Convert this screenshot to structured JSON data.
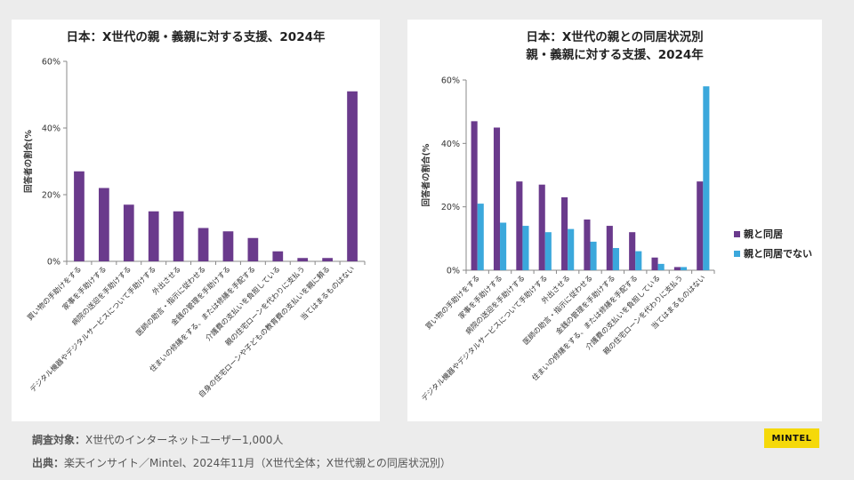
{
  "colors": {
    "purple": "#6a3a8c",
    "blue": "#3ba8dc",
    "axis": "#888888",
    "text": "#333333"
  },
  "chart_data": [
    {
      "type": "bar",
      "title": "日本：X世代の親・義親に対する支援、2024年",
      "ylabel": "回答者の割合(%",
      "ylim": [
        0,
        60
      ],
      "yticks": [
        "0%",
        "20%",
        "40%",
        "60%"
      ],
      "categories": [
        "買い物の手助けをする",
        "家事を手助けする",
        "病院の送迎を手助けする",
        "デジタル機器やデジタルサービスについて手助けする",
        "外出させる",
        "医師の助言・指示に従わせる",
        "金銭の管理を手助けする",
        "住まいの修繕をする、または修繕を手配する",
        "介護費の支払いを負担している",
        "親の住宅ローンを代わりに支払う",
        "自身の住宅ローンや子どもの教育費の支払いを親に頼る",
        "当てはまるものはない"
      ],
      "series": [
        {
          "name": "X世代全体",
          "values": [
            27,
            22,
            17,
            15,
            15,
            10,
            9,
            7,
            3,
            1,
            1,
            51
          ]
        }
      ]
    },
    {
      "type": "bar",
      "title_line1": "日本：X世代の親との同居状況別",
      "title_line2": "親・義親に対する支援、2024年",
      "ylabel": "回答者の割合(%",
      "ylim": [
        0,
        60
      ],
      "yticks": [
        "0%",
        "20%",
        "40%",
        "60%"
      ],
      "categories": [
        "買い物の手助けをする",
        "家事を手助けする",
        "病院の送迎を手助けする",
        "デジタル機器やデジタルサービスについて手助けする",
        "外出させる",
        "医師の助言・指示に従わせる",
        "金銭の管理を手助けする",
        "住まいの修繕をする、または修繕を手配する",
        "介護費の支払いを負担している",
        "親の住宅ローンを代わりに支払う",
        "当てはまるものはない"
      ],
      "series": [
        {
          "name": "親と同居",
          "values": [
            47,
            45,
            28,
            27,
            23,
            16,
            14,
            12,
            4,
            1,
            28
          ]
        },
        {
          "name": "親と同居でない",
          "values": [
            21,
            15,
            14,
            12,
            13,
            9,
            7,
            6,
            2,
            1,
            58
          ]
        }
      ],
      "legend": "right"
    }
  ],
  "footer": {
    "target_label": "調査対象：",
    "target_text": "X世代のインターネットユーザー1,000人",
    "source_label": "出典：",
    "source_text": "楽天インサイト／Mintel、2024年11月（X世代全体；X世代親との同居状況別）"
  },
  "logo": "MINTEL"
}
